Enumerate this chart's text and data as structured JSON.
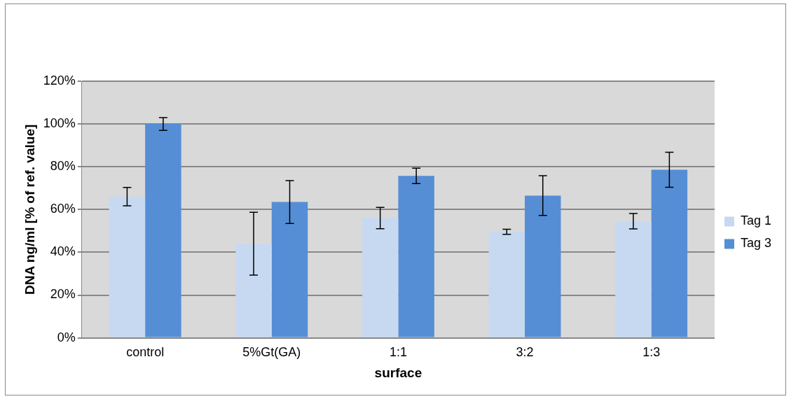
{
  "chart_data": {
    "type": "bar",
    "xlabel": "surface",
    "ylabel": "DNA ng/ml [% of ref. value]",
    "categories": [
      "control",
      "5%Gt(GA)",
      "1:1",
      "3:2",
      "1:3"
    ],
    "series": [
      {
        "name": "Tag 1",
        "color": "#c6d9f1",
        "values": [
          66,
          44,
          56,
          49.6,
          54.5
        ],
        "errors": [
          4.3,
          14.7,
          5,
          1.2,
          3.6
        ]
      },
      {
        "name": "Tag 3",
        "color": "#558ed5",
        "values": [
          100,
          63.5,
          75.7,
          66.5,
          78.6
        ],
        "errors": [
          3,
          10,
          3.6,
          9.3,
          8.2
        ]
      }
    ],
    "ylim": [
      0,
      120
    ],
    "yticks": [
      {
        "value": 0,
        "label": "0%"
      },
      {
        "value": 20,
        "label": "20%"
      },
      {
        "value": 40,
        "label": "40%"
      },
      {
        "value": 60,
        "label": "60%"
      },
      {
        "value": 80,
        "label": "80%"
      },
      {
        "value": 100,
        "label": "100%"
      },
      {
        "value": 120,
        "label": "120%"
      }
    ],
    "grid": "y",
    "legend": "right"
  }
}
